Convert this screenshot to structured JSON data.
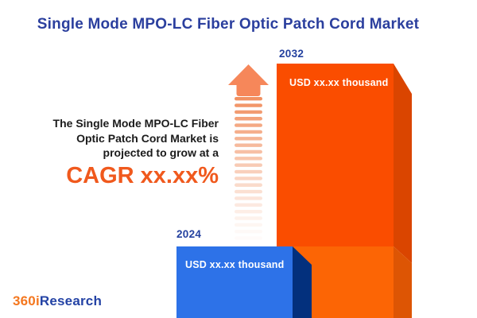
{
  "title": "Single Mode MPO-LC Fiber Optic Patch Cord Market",
  "annotation": {
    "lines": [
      "The Single Mode MPO-LC Fiber",
      "Optic Patch Cord Market is",
      "projected to grow at a"
    ],
    "cagr": "CAGR xx.xx%"
  },
  "chart_data": {
    "type": "bar",
    "categories": [
      "2024",
      "2032"
    ],
    "values": [
      null,
      null
    ],
    "value_labels": [
      "USD xx.xx thousand",
      "USD xx.xx thousand"
    ],
    "title": "Single Mode MPO-LC Fiber Optic Patch Cord Market",
    "annotation_text": "The Single Mode MPO-LC Fiber Optic Patch Cord Market is projected to grow at a CAGR xx.xx%",
    "axes": "hidden",
    "legend": "none",
    "growth_arrow": true
  },
  "logo": {
    "prefix": "360i",
    "suffix": "Research"
  },
  "colors": {
    "title_blue": "#2B3F9E",
    "year_label_blue": "#24419F",
    "text_dark": "#1B1B1B",
    "cagr_orange": "#F0591D",
    "bar_2024_front": "#2D72E8",
    "bar_2024_side": "#03307D",
    "bar_2032_front": "#FA4D00",
    "bar_2032_side": "#DA4500",
    "bar_2032_lower_front": "#FC6505",
    "bar_2032_lower_side": "#DD5504",
    "bar_value_text": "#FFFFFF",
    "arrow_salmon": "#F6875A",
    "arrow_stripe": "#F08A58",
    "logo_orange": "#F4771F",
    "logo_blue": "#2443A5",
    "background": "#FFFFFF"
  }
}
